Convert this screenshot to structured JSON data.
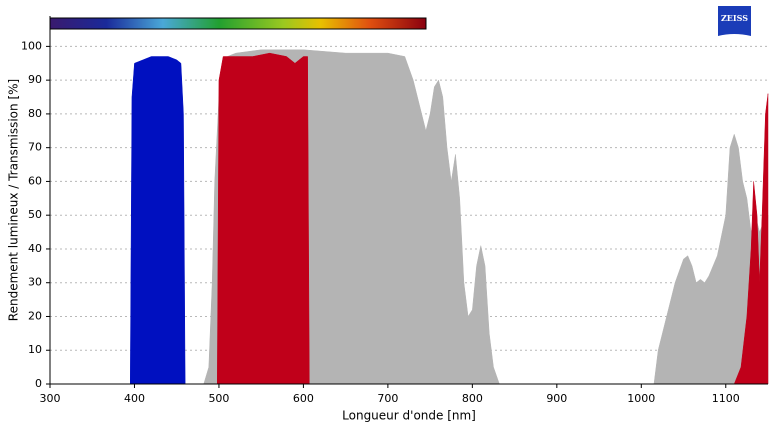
{
  "chart_data": {
    "type": "area",
    "logo": "ZEISS",
    "xlabel": "Longueur d'onde [nm]",
    "ylabel": "Rendement lumineux / Transmission [%]",
    "xlim": [
      300,
      1150
    ],
    "ylim": [
      0,
      109
    ],
    "xticks": [
      300,
      400,
      500,
      600,
      700,
      800,
      900,
      1000,
      1100
    ],
    "yticks": [
      0,
      10,
      20,
      30,
      40,
      50,
      60,
      70,
      80,
      90,
      100
    ],
    "grid": true,
    "series": [
      {
        "color": "#b4b4b4",
        "x": [
          482,
          488,
          492,
          495,
          500,
          510,
          520,
          550,
          600,
          650,
          700,
          720,
          730,
          740,
          745,
          750,
          755,
          760,
          765,
          770,
          775,
          780,
          785,
          790,
          795,
          800,
          805,
          810,
          815,
          820,
          825,
          832,
          900,
          1015,
          1020,
          1030,
          1040,
          1050,
          1055,
          1060,
          1065,
          1070,
          1075,
          1080,
          1090,
          1100,
          1105,
          1110,
          1115,
          1120,
          1125,
          1130,
          1135,
          1140,
          1145,
          1150
        ],
        "values": [
          0,
          5,
          30,
          60,
          85,
          97,
          98,
          99,
          99,
          98,
          98,
          97,
          90,
          80,
          75,
          80,
          88,
          90,
          85,
          70,
          60,
          68,
          55,
          30,
          20,
          22,
          35,
          41,
          35,
          15,
          5,
          0,
          null,
          0,
          10,
          20,
          30,
          37,
          38,
          35,
          30,
          31,
          30,
          32,
          38,
          50,
          70,
          74,
          70,
          60,
          55,
          45,
          50,
          45,
          48,
          50
        ]
      },
      {
        "color": "#c0001a",
        "x": [
          498,
          500,
          505,
          520,
          540,
          560,
          580,
          590,
          600,
          605,
          607,
          900,
          1110,
          1118,
          1125,
          1130,
          1133,
          1137,
          1140,
          1143,
          1147,
          1150
        ],
        "values": [
          0,
          90,
          97,
          97,
          97,
          98,
          97,
          95,
          97,
          97,
          0,
          null,
          0,
          5,
          20,
          40,
          60,
          50,
          30,
          50,
          80,
          86
        ]
      },
      {
        "color": "#0010c0",
        "x": [
          395,
          397,
          400,
          410,
          420,
          430,
          440,
          450,
          455,
          458,
          460
        ],
        "values": [
          0,
          85,
          95,
          96,
          97,
          97,
          97,
          96,
          95,
          80,
          0
        ]
      }
    ]
  }
}
